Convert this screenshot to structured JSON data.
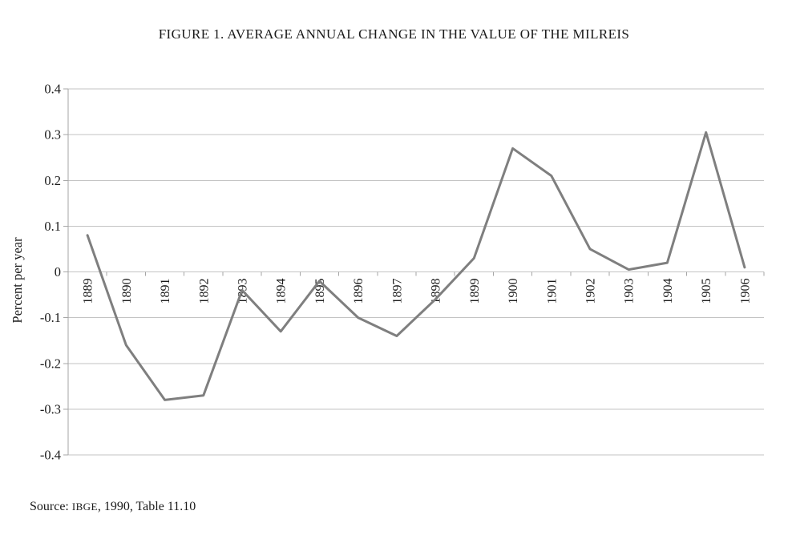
{
  "figure": {
    "title": "FIGURE 1. AVERAGE ANNUAL CHANGE IN THE VALUE OF THE MILREIS",
    "source": {
      "prefix": "Source: ",
      "abbr": "IBGE",
      "suffix": ", 1990, Table 11.10"
    }
  },
  "chart_data": {
    "type": "line",
    "title": "FIGURE 1. AVERAGE ANNUAL CHANGE IN THE VALUE OF THE MILREIS",
    "xlabel": "",
    "ylabel": "Percent per year",
    "categories": [
      "1889",
      "1890",
      "1891",
      "1892",
      "1893",
      "1894",
      "1895",
      "1896",
      "1897",
      "1898",
      "1899",
      "1900",
      "1901",
      "1902",
      "1903",
      "1904",
      "1905",
      "1906"
    ],
    "values": [
      0.08,
      -0.16,
      -0.28,
      -0.27,
      -0.04,
      -0.13,
      -0.02,
      -0.1,
      -0.14,
      -0.06,
      0.03,
      0.27,
      0.21,
      0.05,
      0.005,
      0.02,
      0.305,
      0.01
    ],
    "ylim": [
      -0.4,
      0.4
    ],
    "ytick_values": [
      0.4,
      0.3,
      0.2,
      0.1,
      0,
      -0.1,
      -0.2,
      -0.3,
      -0.4
    ],
    "ytick_labels": [
      "0.4",
      "0.3",
      "0.2",
      "0.1",
      "0",
      "-0.1",
      "-0.2",
      "-0.3",
      "-0.4"
    ],
    "grid": true,
    "legend": false,
    "colors": {
      "line": "#7f7f7f",
      "grid": "#c3c3c3",
      "axis": "#a6a6a6",
      "text": "#1a1a1a"
    }
  }
}
